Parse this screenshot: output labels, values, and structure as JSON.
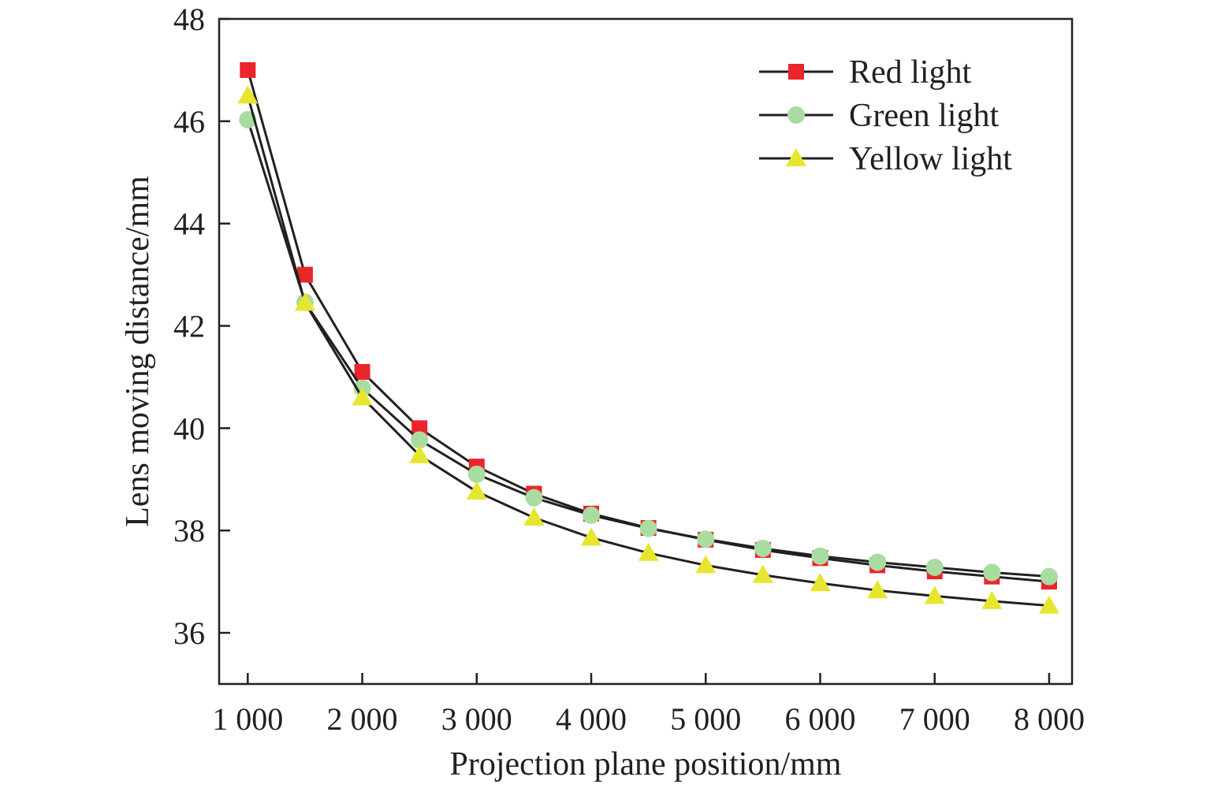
{
  "chart_data": {
    "type": "line",
    "xlabel": "Projection plane position/mm",
    "ylabel": "Lens moving distance/mm",
    "xlim": [
      750,
      8200
    ],
    "ylim": [
      35,
      48
    ],
    "x_ticks": [
      1000,
      2000,
      3000,
      4000,
      5000,
      6000,
      7000,
      8000
    ],
    "x_tick_labels": [
      "1 000",
      "2 000",
      "3 000",
      "4 000",
      "5 000",
      "6 000",
      "7 000",
      "8 000"
    ],
    "y_ticks": [
      36,
      38,
      40,
      42,
      44,
      46,
      48
    ],
    "y_tick_labels": [
      "36",
      "38",
      "40",
      "42",
      "44",
      "46",
      "48"
    ],
    "grid": false,
    "legend_position": "top-right",
    "x": [
      1000,
      1500,
      2000,
      2500,
      3000,
      3500,
      4000,
      4500,
      5000,
      5500,
      6000,
      6500,
      7000,
      7500,
      8000
    ],
    "series": [
      {
        "name": "Red light",
        "marker": "square",
        "color": "#e8262b",
        "values": [
          47.0,
          43.0,
          41.1,
          40.0,
          39.25,
          38.72,
          38.33,
          38.05,
          37.82,
          37.62,
          37.46,
          37.32,
          37.2,
          37.1,
          37.0
        ]
      },
      {
        "name": "Green light",
        "marker": "circle",
        "color": "#a8dca0",
        "values": [
          46.03,
          42.46,
          40.78,
          39.77,
          39.1,
          38.64,
          38.3,
          38.04,
          37.83,
          37.65,
          37.5,
          37.38,
          37.28,
          37.18,
          37.1
        ]
      },
      {
        "name": "Yellow light",
        "marker": "triangle",
        "color": "#e6e62e",
        "values": [
          46.5,
          42.45,
          40.6,
          39.47,
          38.76,
          38.25,
          37.86,
          37.56,
          37.32,
          37.13,
          36.97,
          36.83,
          36.72,
          36.62,
          36.53
        ]
      }
    ]
  }
}
